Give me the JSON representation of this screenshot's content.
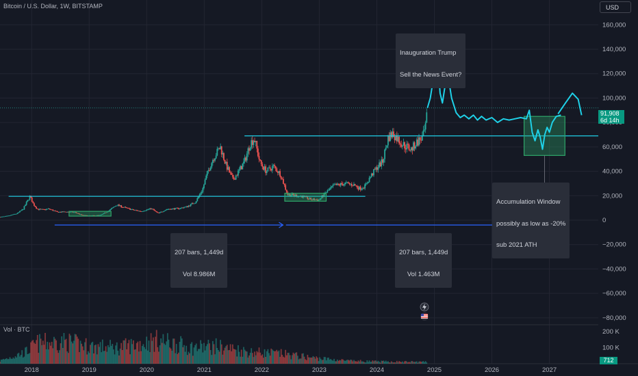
{
  "header": {
    "symbol_title": "Bitcoin / U.S. Dollar, 1W, BITSTAMP",
    "currency": "USD",
    "volume_label": "Vol · BTC"
  },
  "price_tag": {
    "line1": "91,908",
    "line2": "6d 14h",
    "value": 91908
  },
  "volume_tag": {
    "label": "712",
    "value": 712
  },
  "annotations": {
    "inauguration": {
      "line1": "Inauguration Trump",
      "line2": "Sell the News Event?"
    },
    "accumulation": {
      "line1": "Accumulation Window",
      "line2": "possibly as low as -20%",
      "line3": "sub 2021 ATH"
    },
    "range1": {
      "line1": "207 bars, 1,449d",
      "line2": "Vol 8.986M"
    },
    "range2": {
      "line1": "207 bars, 1,449d",
      "line2": "Vol 1.463M"
    }
  },
  "colors": {
    "background": "#151924",
    "up": "#26a69a",
    "down": "#ef5350",
    "cyan": "#1fd1e8",
    "arrow_blue": "#2962ff",
    "box_green": "#2fa66a",
    "grid": "#232632"
  },
  "icons": [
    "lightning-icon",
    "us-flag-icon"
  ],
  "chart_data": {
    "type": "candlestick",
    "grid": true,
    "y_axis": {
      "ticks": [
        160000,
        140000,
        120000,
        100000,
        80000,
        60000,
        40000,
        20000,
        0,
        -20000,
        -40000,
        -60000,
        -80000
      ],
      "tick_labels": [
        "160,000",
        "140,000",
        "120,000",
        "100,000",
        "80,000",
        "60,000",
        "40,000",
        "20,000",
        "0",
        "−20,000",
        "−40,000",
        "−60,000",
        "−80,000"
      ],
      "range": [
        -84000,
        168000
      ]
    },
    "volume_axis": {
      "ticks": [
        200000,
        100000
      ],
      "tick_labels": [
        "200 K",
        "100 K"
      ]
    },
    "x_axis": {
      "ticks": [
        2018,
        2019,
        2020,
        2021,
        2022,
        2023,
        2024,
        2025,
        2026,
        2027
      ],
      "tick_labels": [
        "2018",
        "2019",
        "2020",
        "2021",
        "2022",
        "2023",
        "2024",
        "2025",
        "2026",
        "2027"
      ],
      "range": [
        2017.45,
        2027.85
      ]
    },
    "price_path": [
      [
        2017.45,
        2500
      ],
      [
        2017.6,
        3500
      ],
      [
        2017.75,
        5500
      ],
      [
        2017.85,
        9000
      ],
      [
        2017.93,
        16000
      ],
      [
        2017.97,
        19500
      ],
      [
        2018.03,
        13000
      ],
      [
        2018.1,
        9000
      ],
      [
        2018.2,
        8500
      ],
      [
        2018.3,
        9200
      ],
      [
        2018.45,
        6500
      ],
      [
        2018.6,
        6800
      ],
      [
        2018.75,
        6400
      ],
      [
        2018.88,
        4000
      ],
      [
        2019.0,
        3600
      ],
      [
        2019.2,
        4000
      ],
      [
        2019.35,
        8000
      ],
      [
        2019.48,
        12500
      ],
      [
        2019.6,
        10500
      ],
      [
        2019.75,
        8500
      ],
      [
        2019.9,
        7200
      ],
      [
        2020.08,
        9500
      ],
      [
        2020.2,
        5500
      ],
      [
        2020.35,
        9000
      ],
      [
        2020.55,
        9500
      ],
      [
        2020.7,
        11000
      ],
      [
        2020.85,
        15000
      ],
      [
        2020.97,
        25000
      ],
      [
        2021.05,
        38000
      ],
      [
        2021.15,
        50000
      ],
      [
        2021.28,
        60000
      ],
      [
        2021.38,
        45000
      ],
      [
        2021.5,
        33000
      ],
      [
        2021.6,
        40000
      ],
      [
        2021.7,
        48000
      ],
      [
        2021.8,
        63000
      ],
      [
        2021.87,
        67000
      ],
      [
        2021.97,
        47000
      ],
      [
        2022.08,
        40000
      ],
      [
        2022.2,
        44000
      ],
      [
        2022.32,
        38000
      ],
      [
        2022.45,
        21000
      ],
      [
        2022.55,
        20500
      ],
      [
        2022.7,
        19500
      ],
      [
        2022.85,
        17000
      ],
      [
        2023.0,
        16600
      ],
      [
        2023.1,
        22000
      ],
      [
        2023.25,
        28000
      ],
      [
        2023.45,
        30000
      ],
      [
        2023.6,
        29000
      ],
      [
        2023.7,
        26000
      ],
      [
        2023.8,
        28000
      ],
      [
        2023.88,
        35000
      ],
      [
        2024.0,
        43000
      ],
      [
        2024.1,
        48000
      ],
      [
        2024.2,
        68000
      ],
      [
        2024.28,
        71000
      ],
      [
        2024.45,
        62000
      ],
      [
        2024.6,
        58000
      ],
      [
        2024.7,
        64000
      ],
      [
        2024.8,
        68000
      ],
      [
        2024.85,
        76000
      ],
      [
        2024.88,
        91908
      ]
    ],
    "volume_profile": [
      [
        2017.45,
        20000
      ],
      [
        2017.9,
        80000
      ],
      [
        2018.1,
        140000
      ],
      [
        2018.6,
        150000
      ],
      [
        2019.0,
        120000
      ],
      [
        2019.5,
        110000
      ],
      [
        2020.2,
        160000
      ],
      [
        2020.8,
        110000
      ],
      [
        2021.2,
        120000
      ],
      [
        2021.8,
        80000
      ],
      [
        2022.3,
        70000
      ],
      [
        2022.9,
        40000
      ],
      [
        2023.5,
        20000
      ],
      [
        2024.0,
        15000
      ],
      [
        2024.88,
        12000
      ]
    ],
    "projection_path": [
      [
        2024.88,
        91908
      ],
      [
        2024.93,
        100000
      ],
      [
        2024.97,
        112000
      ],
      [
        2025.0,
        128000
      ],
      [
        2025.03,
        135000
      ],
      [
        2025.06,
        130000
      ],
      [
        2025.1,
        104000
      ],
      [
        2025.14,
        96000
      ],
      [
        2025.18,
        108000
      ],
      [
        2025.22,
        120000
      ],
      [
        2025.26,
        112000
      ],
      [
        2025.3,
        100000
      ],
      [
        2025.38,
        88000
      ],
      [
        2025.45,
        84000
      ],
      [
        2025.52,
        86000
      ],
      [
        2025.6,
        83000
      ],
      [
        2025.68,
        86000
      ],
      [
        2025.75,
        82000
      ],
      [
        2025.82,
        85000
      ],
      [
        2025.9,
        82000
      ],
      [
        2026.0,
        84000
      ],
      [
        2026.1,
        80000
      ],
      [
        2026.2,
        83000
      ],
      [
        2026.3,
        82000
      ],
      [
        2026.4,
        83000
      ],
      [
        2026.5,
        84000
      ],
      [
        2026.6,
        83000
      ],
      [
        2026.65,
        90000
      ],
      [
        2026.7,
        72000
      ],
      [
        2026.75,
        65000
      ],
      [
        2026.8,
        74000
      ],
      [
        2026.84,
        68000
      ],
      [
        2026.88,
        58000
      ],
      [
        2026.92,
        70000
      ],
      [
        2026.96,
        76000
      ],
      [
        2027.0,
        72000
      ],
      [
        2027.05,
        80000
      ],
      [
        2027.12,
        85000
      ],
      [
        2027.2,
        86000
      ]
    ],
    "projection_tail": [
      [
        2027.15,
        87000
      ],
      [
        2027.28,
        96000
      ],
      [
        2027.4,
        104000
      ],
      [
        2027.5,
        99000
      ],
      [
        2027.56,
        86000
      ]
    ],
    "horizontal_lines": [
      {
        "x1": 2017.6,
        "x2": 2023.8,
        "y": 19500
      },
      {
        "x1": 2021.7,
        "x2": 2027.85,
        "y": 69000
      }
    ],
    "boxes": [
      {
        "x1": 2018.65,
        "x2": 2019.38,
        "y1": 3300,
        "y2": 7200,
        "color": "#2fa66a"
      },
      {
        "x1": 2022.4,
        "x2": 2023.12,
        "y1": 15500,
        "y2": 22000,
        "color": "#2fa66a"
      },
      {
        "x1": 2026.56,
        "x2": 2027.27,
        "y1": 53000,
        "y2": 85000,
        "color": "#2fa66a"
      }
    ],
    "range_arrows": [
      {
        "x1": 2018.4,
        "x2": 2022.37,
        "y": -4000
      },
      {
        "x1": 2022.42,
        "x2": 2026.4,
        "y": -4000
      }
    ],
    "current_price": 91908
  }
}
